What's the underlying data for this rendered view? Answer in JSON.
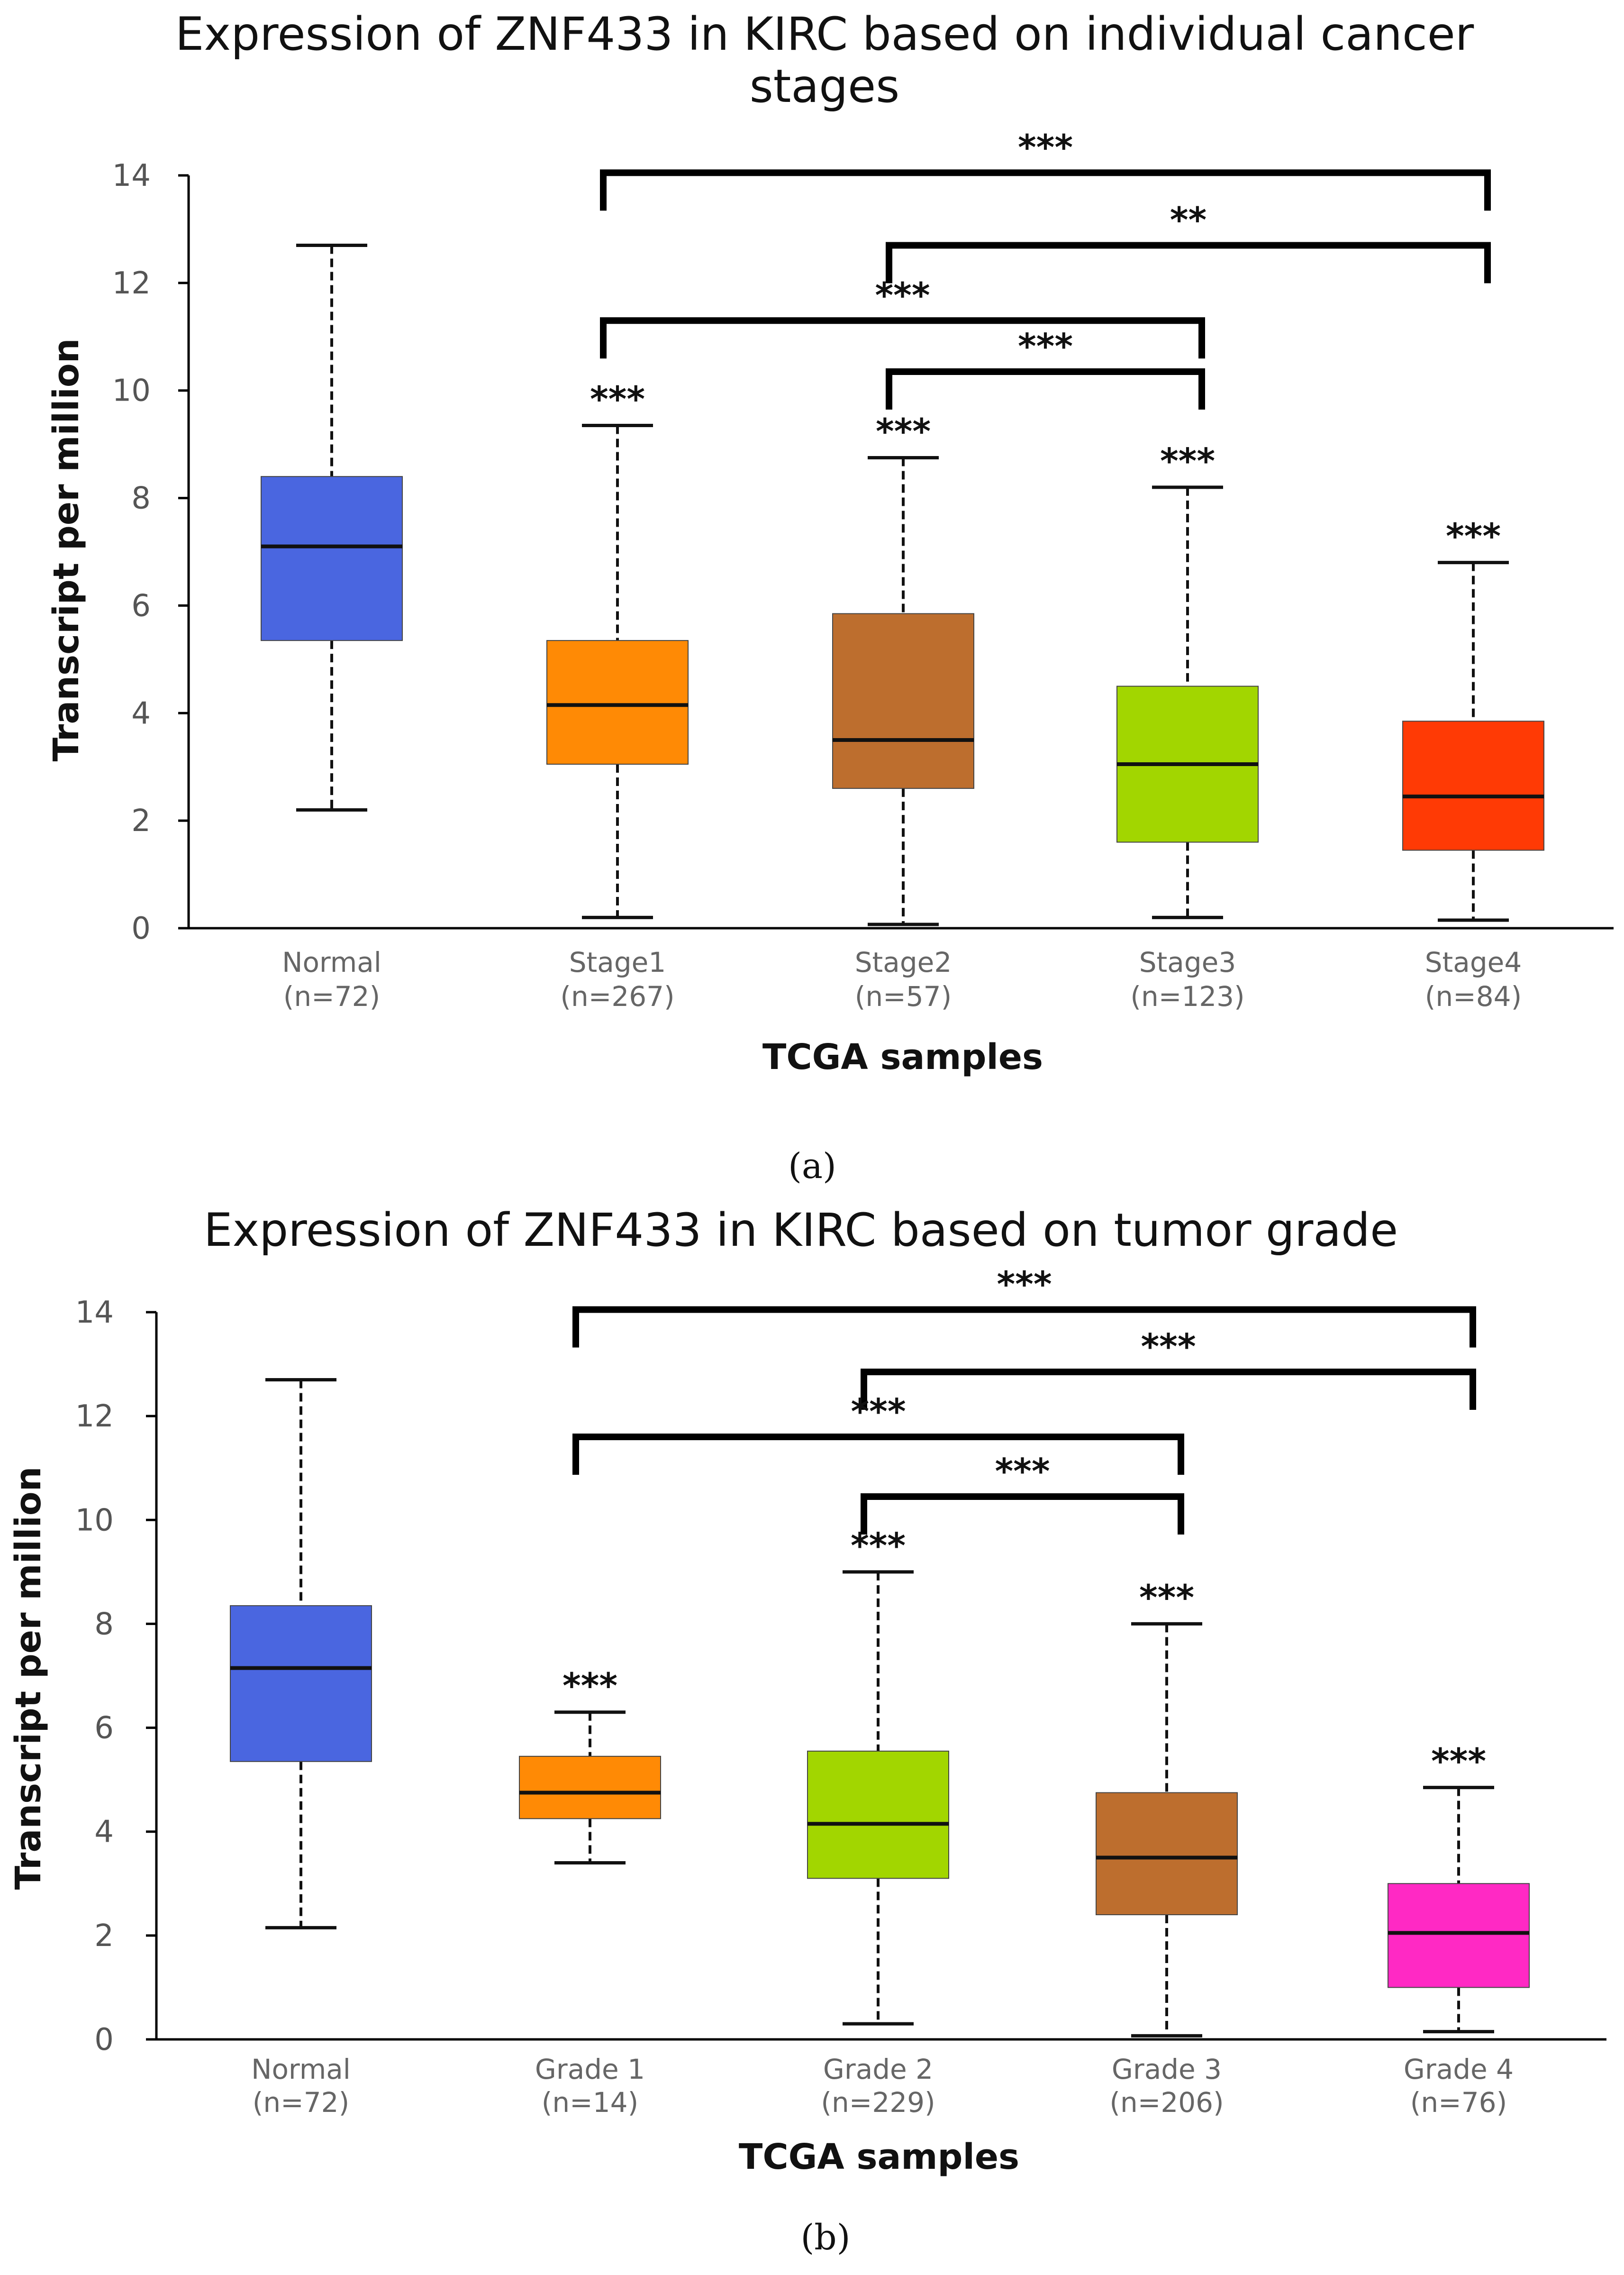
{
  "chart_data": [
    {
      "type": "boxplot",
      "panel_label": "(a)",
      "title_lines": [
        "Expression of ZNF433 in KIRC based on individual cancer",
        "stages"
      ],
      "xlabel": "TCGA samples",
      "ylabel": "Transcript per million",
      "ylim": [
        0,
        14
      ],
      "yticks": [
        "0",
        "2",
        "4",
        "6",
        "8",
        "10",
        "12",
        "14"
      ],
      "categories": [
        "Normal",
        "Stage1",
        "Stage2",
        "Stage3",
        "Stage4"
      ],
      "counts": [
        "(n=72)",
        "(n=267)",
        "(n=57)",
        "(n=123)",
        "(n=84)"
      ],
      "colors": [
        "#4a66e0",
        "#ff8a05",
        "#bd6e2e",
        "#a2d600",
        "#ff3a05"
      ],
      "boxes": [
        {
          "min": 2.2,
          "q1": 5.35,
          "median": 7.1,
          "q3": 8.4,
          "max": 12.7,
          "star": ""
        },
        {
          "min": 0.2,
          "q1": 3.05,
          "median": 4.15,
          "q3": 5.35,
          "max": 9.35,
          "star": "***"
        },
        {
          "min": 0.07,
          "q1": 2.6,
          "median": 3.5,
          "q3": 5.85,
          "max": 8.75,
          "star": "***"
        },
        {
          "min": 0.2,
          "q1": 1.6,
          "median": 3.05,
          "q3": 4.5,
          "max": 8.2,
          "star": "***"
        },
        {
          "min": 0.15,
          "q1": 1.45,
          "median": 2.45,
          "q3": 3.85,
          "max": 6.8,
          "star": "***"
        }
      ],
      "brackets": [
        {
          "from": 1,
          "to": 4,
          "y": 14.05,
          "label": "***"
        },
        {
          "from": 2,
          "to": 4,
          "y": 12.7,
          "label": "**"
        },
        {
          "from": 1,
          "to": 3,
          "y": 11.3,
          "label": "***"
        },
        {
          "from": 2,
          "to": 3,
          "y": 10.35,
          "label": "***"
        }
      ]
    },
    {
      "type": "boxplot",
      "panel_label": "(b)",
      "title_lines": [
        "Expression of ZNF433 in KIRC based on tumor grade"
      ],
      "xlabel": "TCGA samples",
      "ylabel": "Transcript per million",
      "ylim": [
        0,
        14
      ],
      "yticks": [
        "0",
        "2",
        "4",
        "6",
        "8",
        "10",
        "12",
        "14"
      ],
      "categories": [
        "Normal",
        "Grade 1",
        "Grade 2",
        "Grade 3",
        "Grade 4"
      ],
      "counts": [
        "(n=72)",
        "(n=14)",
        "(n=229)",
        "(n=206)",
        "(n=76)"
      ],
      "colors": [
        "#4a66e0",
        "#ff8a05",
        "#a2d600",
        "#bd6e2e",
        "#ff29c4"
      ],
      "boxes": [
        {
          "min": 2.15,
          "q1": 5.35,
          "median": 7.15,
          "q3": 8.35,
          "max": 12.7,
          "star": ""
        },
        {
          "min": 3.4,
          "q1": 4.25,
          "median": 4.75,
          "q3": 5.45,
          "max": 6.3,
          "star": "***"
        },
        {
          "min": 0.3,
          "q1": 3.1,
          "median": 4.15,
          "q3": 5.55,
          "max": 9.0,
          "star": "***"
        },
        {
          "min": 0.07,
          "q1": 2.4,
          "median": 3.5,
          "q3": 4.75,
          "max": 8.0,
          "star": "***"
        },
        {
          "min": 0.15,
          "q1": 1.0,
          "median": 2.05,
          "q3": 3.0,
          "max": 4.85,
          "star": "***"
        }
      ],
      "brackets": [
        {
          "from": 1,
          "to": 4,
          "y": 14.05,
          "label": "***"
        },
        {
          "from": 2,
          "to": 4,
          "y": 12.85,
          "label": "***"
        },
        {
          "from": 1,
          "to": 3,
          "y": 11.6,
          "label": "***"
        },
        {
          "from": 2,
          "to": 3,
          "y": 10.45,
          "label": "***"
        }
      ]
    }
  ]
}
